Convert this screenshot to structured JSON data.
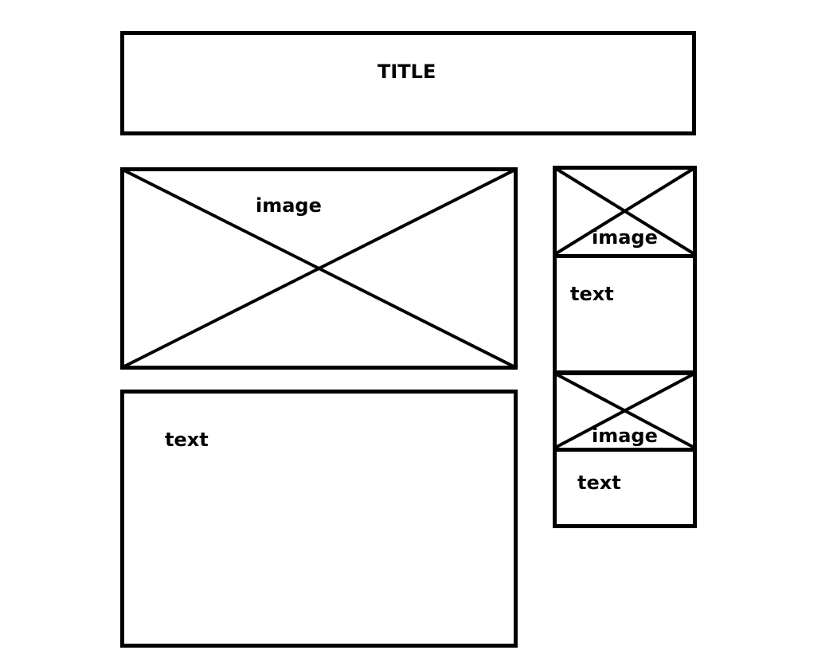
{
  "wireframe": {
    "title_box": {
      "label": "TITLE"
    },
    "main_image": {
      "label": "image"
    },
    "main_text": {
      "label": "text"
    },
    "side_card_1": {
      "image_label": "image",
      "text_label": "text"
    },
    "side_card_2": {
      "image_label": "image",
      "text_label": "text"
    }
  },
  "colors": {
    "stroke": "#000000",
    "background": "#ffffff"
  }
}
